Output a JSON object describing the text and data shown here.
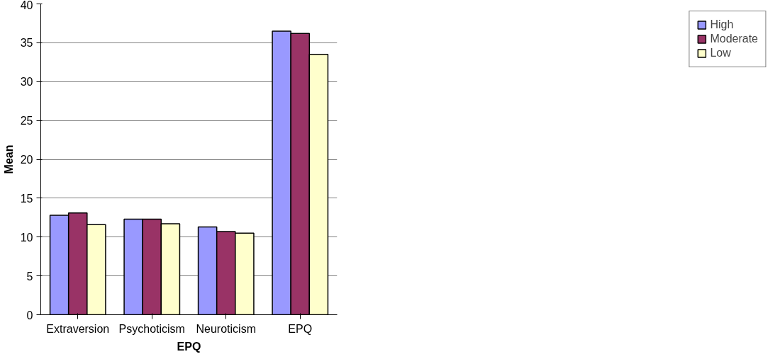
{
  "chart_data": {
    "type": "bar",
    "xlabel": "EPQ",
    "ylabel": "Mean",
    "categories": [
      "Extraversion",
      "Psychoticism",
      "Neuroticism",
      "EPQ"
    ],
    "series": [
      {
        "name": "High",
        "color": "#9999ff",
        "values": [
          12.8,
          12.3,
          11.3,
          36.5
        ]
      },
      {
        "name": "Moderate",
        "color": "#993366",
        "values": [
          13.1,
          12.3,
          10.7,
          36.2
        ]
      },
      {
        "name": "Low",
        "color": "#ffffcc",
        "values": [
          11.6,
          11.7,
          10.5,
          33.5
        ]
      }
    ],
    "ylim": [
      0,
      40
    ],
    "yticks": [
      0,
      5,
      10,
      15,
      20,
      25,
      30,
      35,
      40
    ],
    "grid": "y",
    "legend": "right"
  }
}
